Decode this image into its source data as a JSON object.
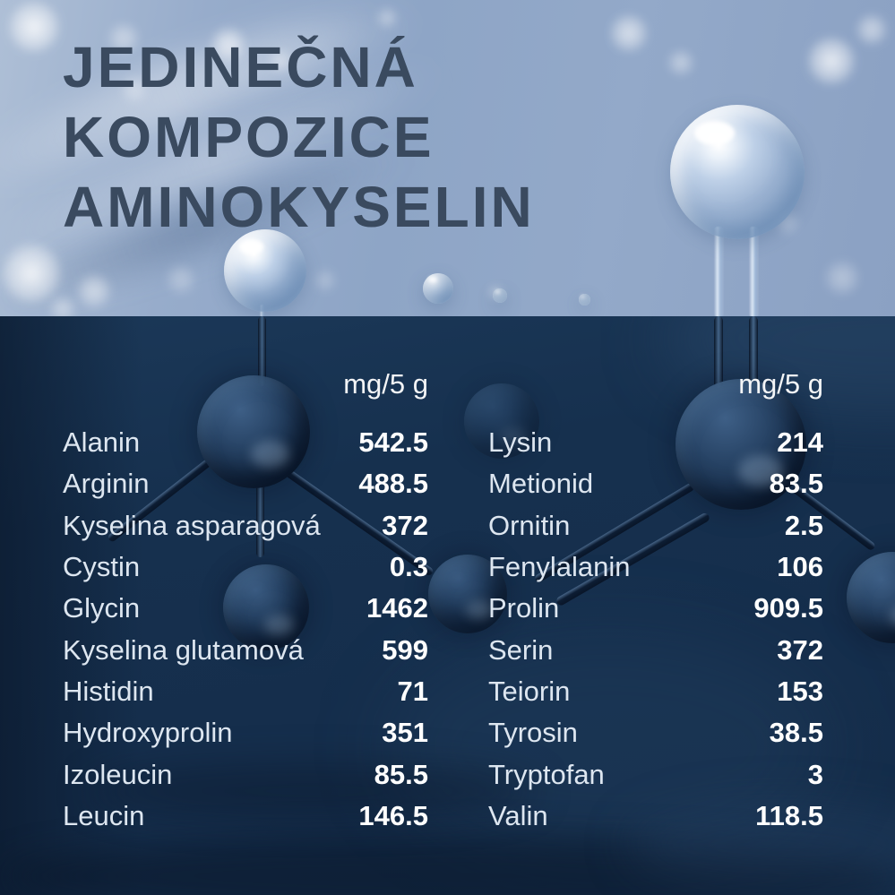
{
  "title": {
    "lines": [
      "JEDINEČNÁ",
      "KOMPOZICE",
      "AMINOKYSELIN"
    ]
  },
  "chart_data": {
    "type": "table",
    "title": "JEDINEČNÁ KOMPOZICE AMINOKYSELIN",
    "unit_label": "mg/5 g",
    "columns": [
      {
        "header": "mg/5 g",
        "rows": [
          {
            "label": "Alanin",
            "value": 542.5
          },
          {
            "label": "Arginin",
            "value": 488.5
          },
          {
            "label": "Kyselina asparagová",
            "value": 372
          },
          {
            "label": "Cystin",
            "value": 0.3
          },
          {
            "label": "Glycin",
            "value": 1462
          },
          {
            "label": "Kyselina glutamová",
            "value": 599
          },
          {
            "label": "Histidin",
            "value": 71
          },
          {
            "label": "Hydroxyprolin",
            "value": 351
          },
          {
            "label": "Izoleucin",
            "value": 85.5
          },
          {
            "label": "Leucin",
            "value": 146.5
          }
        ]
      },
      {
        "header": "mg/5 g",
        "rows": [
          {
            "label": "Lysin",
            "value": 214
          },
          {
            "label": "Metionid",
            "value": 83.5
          },
          {
            "label": "Ornitin",
            "value": 2.5
          },
          {
            "label": "Fenylalanin",
            "value": 106
          },
          {
            "label": "Prolin",
            "value": 909.5
          },
          {
            "label": "Serin",
            "value": 372
          },
          {
            "label": "Teiorin",
            "value": 153
          },
          {
            "label": "Tyrosin",
            "value": 38.5
          },
          {
            "label": "Tryptofan",
            "value": 3
          },
          {
            "label": "Valin",
            "value": 118.5
          }
        ]
      }
    ]
  },
  "colors": {
    "title_text": "#3a4a5f",
    "top_background": "#92a8c8",
    "bottom_background": "#16304e",
    "label_text": "#dde6f0",
    "value_text": "#ffffff"
  }
}
